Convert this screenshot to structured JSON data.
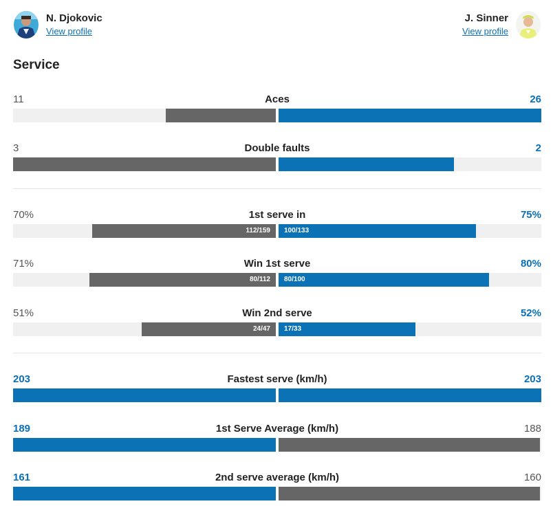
{
  "players": {
    "left": {
      "name": "N. Djokovic",
      "link": "View profile"
    },
    "right": {
      "name": "J. Sinner",
      "link": "View profile"
    }
  },
  "section_title": "Service",
  "colors": {
    "blue": "#0b73b5",
    "gray": "#666666",
    "track": "#f0f0f0",
    "link": "#0a6fb8"
  },
  "stats": [
    {
      "title": "Aces",
      "left": "11",
      "right": "26",
      "left_fill": 0.42,
      "right_fill": 1.0,
      "left_color": "gray",
      "right_color": "blue",
      "leader": "right"
    },
    {
      "title": "Double faults",
      "left": "3",
      "right": "2",
      "left_fill": 1.0,
      "right_fill": 0.667,
      "left_color": "gray",
      "right_color": "blue",
      "leader": "right"
    },
    {
      "title": "1st serve in",
      "left": "70%",
      "right": "75%",
      "left_fill": 0.7,
      "right_fill": 0.75,
      "left_color": "gray",
      "right_color": "blue",
      "leader": "right",
      "left_detail": "112/159",
      "right_detail": "100/133"
    },
    {
      "title": "Win 1st serve",
      "left": "71%",
      "right": "80%",
      "left_fill": 0.71,
      "right_fill": 0.8,
      "left_color": "gray",
      "right_color": "blue",
      "leader": "right",
      "left_detail": "80/112",
      "right_detail": "80/100"
    },
    {
      "title": "Win 2nd serve",
      "left": "51%",
      "right": "52%",
      "left_fill": 0.51,
      "right_fill": 0.52,
      "left_color": "gray",
      "right_color": "blue",
      "leader": "right",
      "left_detail": "24/47",
      "right_detail": "17/33"
    },
    {
      "title": "Fastest serve (km/h)",
      "left": "203",
      "right": "203",
      "left_fill": 1.0,
      "right_fill": 1.0,
      "left_color": "blue",
      "right_color": "blue",
      "leader": "both"
    },
    {
      "title": "1st Serve Average (km/h)",
      "left": "189",
      "right": "188",
      "left_fill": 1.0,
      "right_fill": 0.995,
      "left_color": "blue",
      "right_color": "gray",
      "leader": "left"
    },
    {
      "title": "2nd serve average (km/h)",
      "left": "161",
      "right": "160",
      "left_fill": 1.0,
      "right_fill": 0.994,
      "left_color": "blue",
      "right_color": "gray",
      "leader": "left"
    }
  ]
}
